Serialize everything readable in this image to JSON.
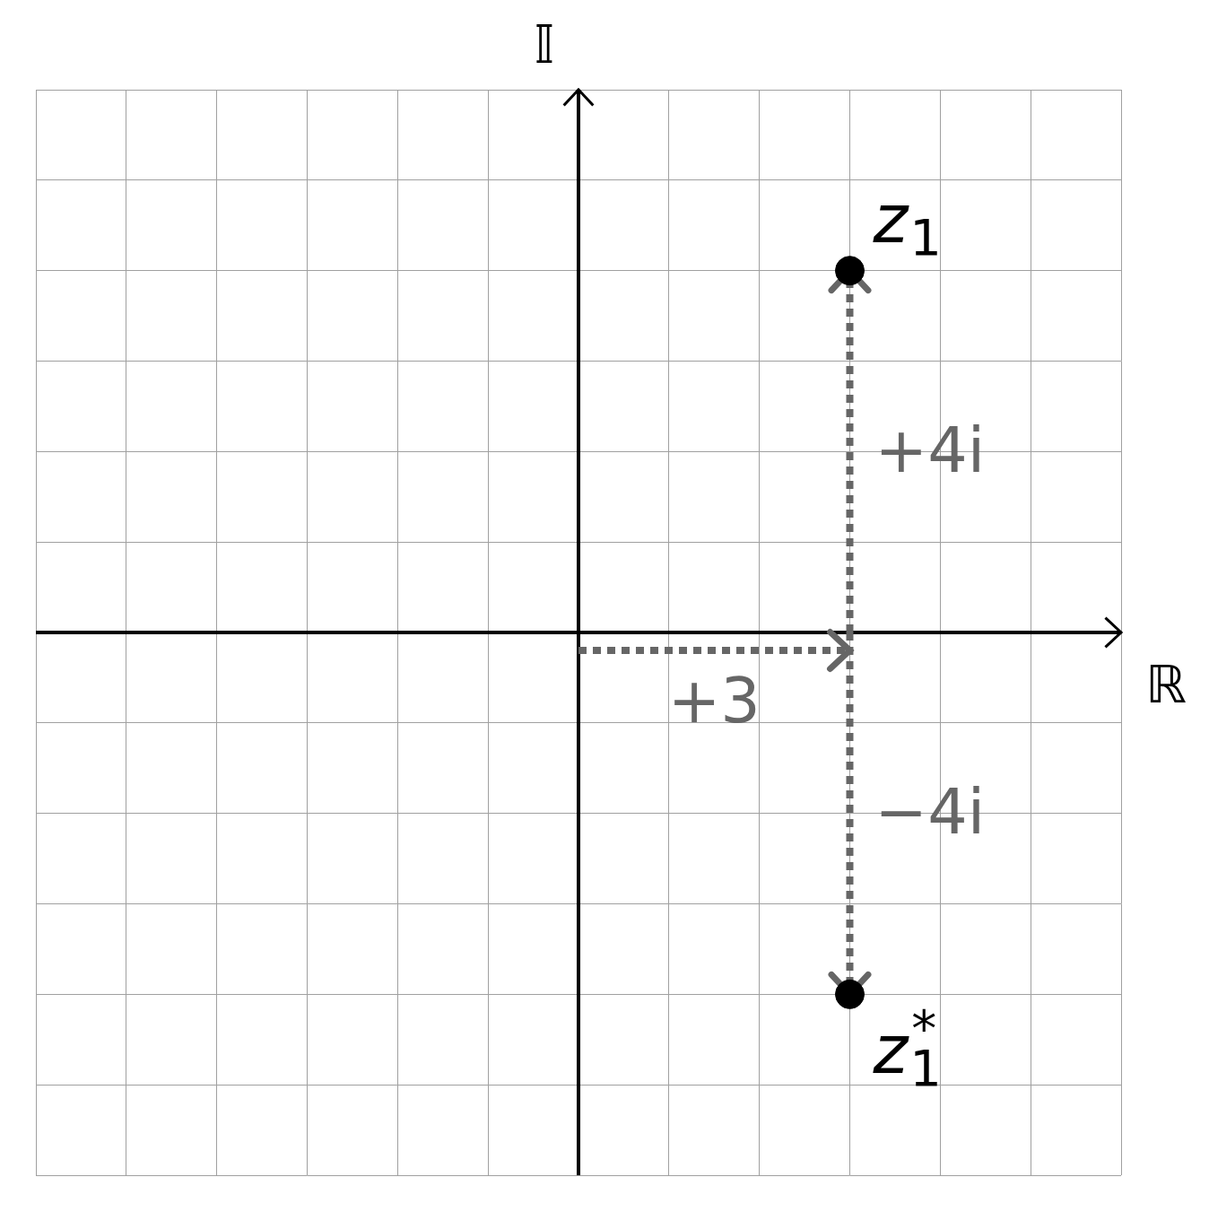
{
  "chart_data": {
    "type": "scatter",
    "x_label": "ℝ",
    "y_label": "𝕀",
    "xlim": [
      -6,
      6
    ],
    "ylim": [
      -6,
      6
    ],
    "xticks": [
      -6,
      -5,
      -4,
      -3,
      -2,
      -1,
      0,
      1,
      2,
      3,
      4,
      5,
      6
    ],
    "yticks": [
      -6,
      -5,
      -4,
      -3,
      -2,
      -1,
      0,
      1,
      2,
      3,
      4,
      5,
      6
    ],
    "grid": true,
    "tick_labels": false,
    "color": "#000000",
    "points": [
      {
        "label": "z",
        "subscript": "1",
        "x": 3,
        "y": 4
      },
      {
        "label": "z",
        "subscript": "1",
        "superscript": "*",
        "x": 3,
        "y": -4
      }
    ],
    "annotations": [
      {
        "text": "+3",
        "from": [
          0,
          0
        ],
        "to": [
          3,
          0
        ]
      },
      {
        "text": "+4i",
        "from": [
          3,
          0
        ],
        "to": [
          3,
          4
        ]
      },
      {
        "text": "−4i",
        "from": [
          3,
          0
        ],
        "to": [
          3,
          -4
        ]
      }
    ]
  }
}
